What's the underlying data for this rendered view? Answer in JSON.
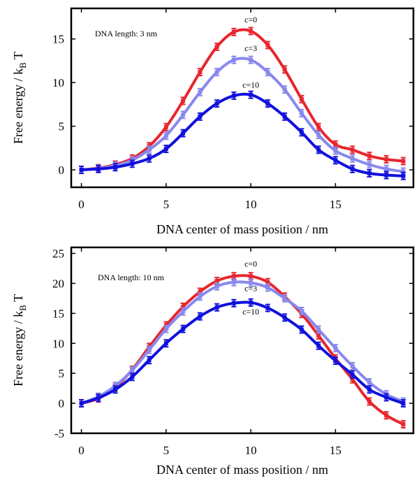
{
  "chart_data": [
    {
      "type": "line",
      "xlabel": "DNA center of mass position /  nm",
      "ylabel": "Free energy / k",
      "ylabel_sub": "B",
      "ylabel_suffix": " T",
      "xlim": [
        -0.6,
        19.6
      ],
      "ylim": [
        -2,
        18.5
      ],
      "xticks": [
        0,
        5,
        10,
        15
      ],
      "yticks": [
        0,
        5,
        10,
        15
      ],
      "grid": false,
      "legend": "none",
      "annotation": "DNA length: 3 nm",
      "x": [
        0,
        1,
        2,
        3,
        4,
        5,
        6,
        7,
        8,
        9,
        10,
        11,
        12,
        13,
        14,
        15,
        16,
        17,
        18,
        19
      ],
      "series": [
        {
          "name": "c=0",
          "color": "#e8262e",
          "values": [
            0,
            0.2,
            0.6,
            1.3,
            2.7,
            4.9,
            7.9,
            11.2,
            14.1,
            15.8,
            15.9,
            14.3,
            11.5,
            8.1,
            4.9,
            2.9,
            2.3,
            1.6,
            1.2,
            1.0
          ],
          "label_at": [
            10,
            16.9
          ]
        },
        {
          "name": "c=3",
          "color": "#8888ee",
          "values": [
            0,
            0.15,
            0.5,
            1.1,
            2.3,
            3.9,
            6.3,
            8.9,
            11.2,
            12.6,
            12.6,
            11.2,
            9.2,
            6.5,
            4.0,
            2.2,
            1.3,
            0.6,
            0.1,
            -0.2
          ],
          "label_at": [
            10,
            13.6
          ]
        },
        {
          "name": "c=10",
          "color": "#1010dd",
          "values": [
            0,
            0.1,
            0.3,
            0.7,
            1.3,
            2.4,
            4.2,
            6.1,
            7.6,
            8.5,
            8.6,
            7.6,
            6.1,
            4.3,
            2.3,
            1.1,
            0.1,
            -0.4,
            -0.6,
            -0.7
          ],
          "label_at": [
            10,
            9.4
          ]
        }
      ]
    },
    {
      "type": "line",
      "xlabel": "DNA center of mass position /  nm",
      "ylabel": "Free energy / k",
      "ylabel_sub": "B",
      "ylabel_suffix": " T",
      "xlim": [
        -0.6,
        19.6
      ],
      "ylim": [
        -5,
        26
      ],
      "xticks": [
        0,
        5,
        10,
        15
      ],
      "yticks": [
        -5,
        0,
        5,
        10,
        15,
        20,
        25
      ],
      "grid": false,
      "legend": "none",
      "annotation": "DNA length: 10 nm",
      "x": [
        0,
        1,
        2,
        3,
        4,
        5,
        6,
        7,
        8,
        9,
        10,
        11,
        12,
        13,
        14,
        15,
        16,
        17,
        18,
        19
      ],
      "series": [
        {
          "name": "c=0",
          "color": "#e8262e",
          "values": [
            0,
            0.8,
            2.6,
            5.6,
            9.4,
            13.0,
            16.1,
            18.6,
            20.4,
            21.2,
            21.2,
            20.2,
            17.8,
            14.9,
            11.3,
            7.5,
            4.0,
            0.3,
            -2.0,
            -3.5
          ],
          "label_at": [
            10,
            22.8
          ]
        },
        {
          "name": "c=3",
          "color": "#8888ee",
          "values": [
            0,
            1.1,
            2.9,
            5.5,
            8.9,
            12.4,
            15.3,
            17.8,
            19.5,
            20.2,
            20.1,
            19.3,
            17.5,
            15.4,
            12.3,
            9.2,
            6.2,
            3.5,
            1.5,
            0.3
          ],
          "label_at": [
            10,
            18.7
          ]
        },
        {
          "name": "c=10",
          "color": "#1010dd",
          "values": [
            0,
            0.9,
            2.3,
            4.4,
            7.2,
            10.0,
            12.4,
            14.5,
            16.0,
            16.7,
            16.8,
            15.9,
            14.3,
            12.3,
            9.6,
            7.1,
            4.8,
            2.3,
            1.0,
            0.0
          ],
          "label_at": [
            10,
            14.8
          ]
        }
      ]
    }
  ]
}
